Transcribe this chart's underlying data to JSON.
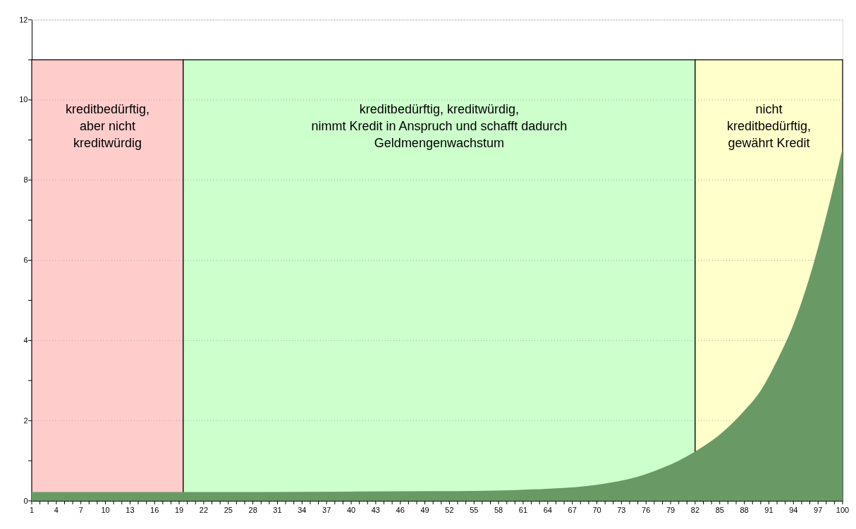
{
  "chart_data": {
    "type": "area",
    "xlim": [
      1,
      100
    ],
    "ylim": [
      0,
      12
    ],
    "xticks": [
      1,
      {
        "value": 2,
        "label": null
      },
      {
        "value": 3,
        "label": null
      },
      4,
      {
        "value": 5,
        "label": null
      },
      {
        "value": 6,
        "label": null
      },
      7,
      {
        "value": 8,
        "label": null
      },
      {
        "value": 9,
        "label": null
      },
      10,
      {
        "value": 11,
        "label": null
      },
      {
        "value": 12,
        "label": null
      },
      13,
      {
        "value": 14,
        "label": null
      },
      {
        "value": 15,
        "label": null
      },
      16,
      {
        "value": 17,
        "label": null
      },
      {
        "value": 18,
        "label": null
      },
      19,
      {
        "value": 20,
        "label": null
      },
      {
        "value": 21,
        "label": null
      },
      22,
      {
        "value": 23,
        "label": null
      },
      {
        "value": 24,
        "label": null
      },
      25,
      {
        "value": 26,
        "label": null
      },
      {
        "value": 27,
        "label": null
      },
      28,
      {
        "value": 29,
        "label": null
      },
      {
        "value": 30,
        "label": null
      },
      31,
      {
        "value": 32,
        "label": null
      },
      {
        "value": 33,
        "label": null
      },
      34,
      {
        "value": 35,
        "label": null
      },
      {
        "value": 36,
        "label": null
      },
      37,
      {
        "value": 38,
        "label": null
      },
      {
        "value": 39,
        "label": null
      },
      40,
      {
        "value": 41,
        "label": null
      },
      {
        "value": 42,
        "label": null
      },
      43,
      {
        "value": 44,
        "label": null
      },
      {
        "value": 45,
        "label": null
      },
      46,
      {
        "value": 47,
        "label": null
      },
      {
        "value": 48,
        "label": null
      },
      49,
      {
        "value": 50,
        "label": null
      },
      {
        "value": 51,
        "label": null
      },
      52,
      {
        "value": 53,
        "label": null
      },
      {
        "value": 54,
        "label": null
      },
      55,
      {
        "value": 56,
        "label": null
      },
      {
        "value": 57,
        "label": null
      },
      58,
      {
        "value": 59,
        "label": null
      },
      {
        "value": 60,
        "label": null
      },
      61,
      {
        "value": 62,
        "label": null
      },
      {
        "value": 63,
        "label": null
      },
      64,
      {
        "value": 65,
        "label": null
      },
      {
        "value": 66,
        "label": null
      },
      67,
      {
        "value": 68,
        "label": null
      },
      {
        "value": 69,
        "label": null
      },
      70,
      {
        "value": 71,
        "label": null
      },
      {
        "value": 72,
        "label": null
      },
      73,
      {
        "value": 74,
        "label": null
      },
      {
        "value": 75,
        "label": null
      },
      76,
      {
        "value": 77,
        "label": null
      },
      {
        "value": 78,
        "label": null
      },
      79,
      {
        "value": 80,
        "label": null
      },
      {
        "value": 81,
        "label": null
      },
      82,
      {
        "value": 83,
        "label": null
      },
      {
        "value": 84,
        "label": null
      },
      85,
      {
        "value": 86,
        "label": null
      },
      {
        "value": 87,
        "label": null
      },
      88,
      {
        "value": 89,
        "label": null
      },
      {
        "value": 90,
        "label": null
      },
      91,
      {
        "value": 92,
        "label": null
      },
      {
        "value": 93,
        "label": null
      },
      94,
      {
        "value": 95,
        "label": null
      },
      {
        "value": 96,
        "label": null
      },
      97,
      {
        "value": 98,
        "label": null
      },
      {
        "value": 99,
        "label": null
      },
      100
    ],
    "yticks": [
      0,
      {
        "value": 1,
        "label": null
      },
      2,
      {
        "value": 3,
        "label": null
      },
      4,
      {
        "value": 5,
        "label": null
      },
      6,
      {
        "value": 7,
        "label": null
      },
      8,
      {
        "value": 9,
        "label": null
      },
      10,
      {
        "value": 11,
        "label": null
      },
      12
    ],
    "grid": "y",
    "series": [
      {
        "color": "#ffcccc",
        "x": [
          1,
          19.5
        ],
        "values": [
          11,
          11
        ]
      },
      {
        "color": "#ccffcc",
        "x": [
          19.5,
          82
        ],
        "values": [
          11,
          11
        ]
      },
      {
        "color": "#ffffcc",
        "x": [
          82,
          100
        ],
        "values": [
          11,
          11
        ]
      },
      {
        "color": "#699a66",
        "x": [
          1,
          20,
          40,
          50,
          60,
          65,
          70,
          75,
          78,
          80,
          82,
          85,
          88,
          90,
          92,
          94,
          96,
          98,
          100
        ],
        "values": [
          0.22,
          0.22,
          0.23,
          0.24,
          0.27,
          0.31,
          0.4,
          0.6,
          0.82,
          1.0,
          1.23,
          1.65,
          2.25,
          2.75,
          3.5,
          4.4,
          5.6,
          7.1,
          8.8
        ]
      }
    ],
    "annotations": [
      "kreditbedürftig,\naber nicht\nkreditwürdig",
      "kreditbedürftig, kreditwürdig,\nnimmt Kredit in Anspruch und schafft dadurch\nGeldmengenwachstum",
      "nicht\nkreditbedürftig,\ngewährt Kredit"
    ]
  }
}
